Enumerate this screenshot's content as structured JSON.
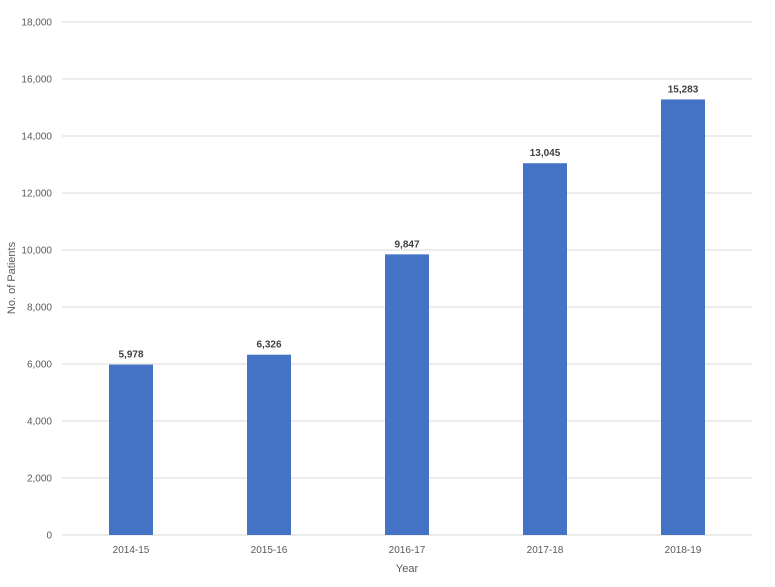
{
  "chart_data": {
    "type": "bar",
    "categories": [
      "2014-15",
      "2015-16",
      "2016-17",
      "2017-18",
      "2018-19"
    ],
    "values": [
      5978,
      6326,
      9847,
      13045,
      15283
    ],
    "value_labels": [
      "5,978",
      "6,326",
      "9,847",
      "13,045",
      "15,283"
    ],
    "xlabel": "Year",
    "ylabel": "No. of Patients",
    "ylim": [
      0,
      18000
    ],
    "yticks": [
      0,
      2000,
      4000,
      6000,
      8000,
      10000,
      12000,
      14000,
      16000,
      18000
    ],
    "ytick_labels": [
      "0",
      "2,000",
      "4,000",
      "6,000",
      "8,000",
      "10,000",
      "12,000",
      "14,000",
      "16,000",
      "18,000"
    ],
    "grid": true,
    "bar_color": "#4472C4"
  }
}
